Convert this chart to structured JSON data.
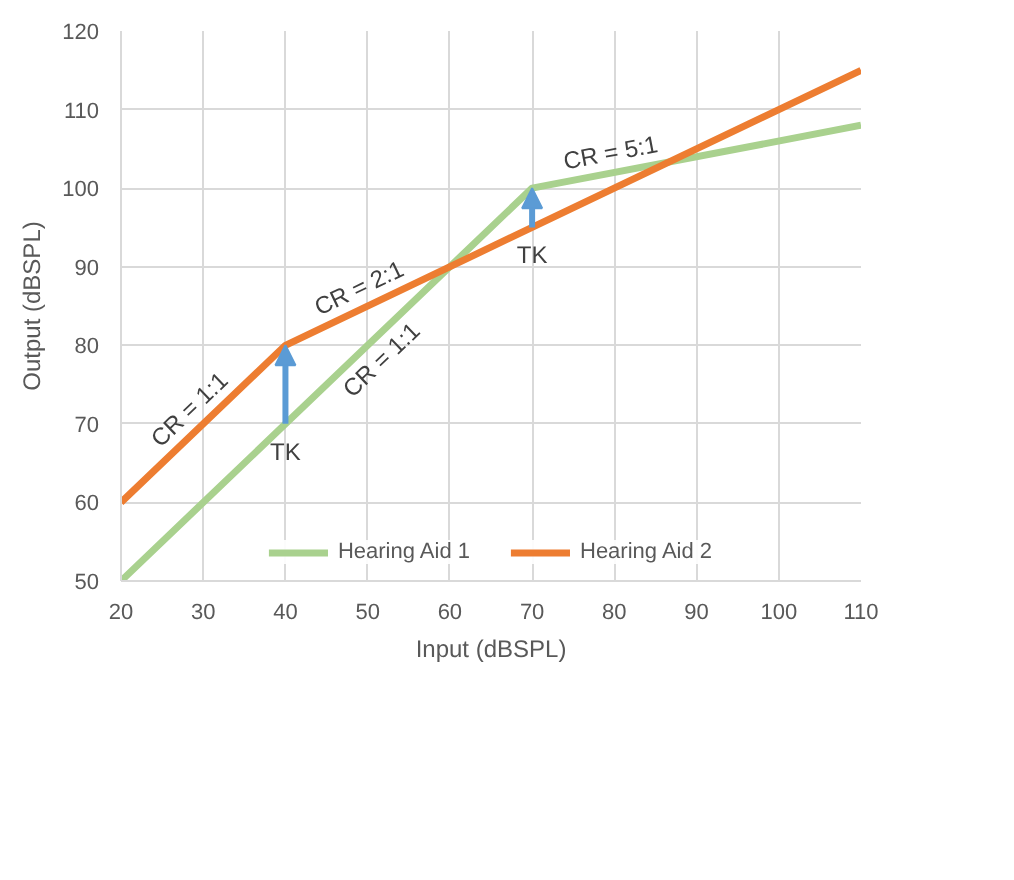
{
  "chart_data": {
    "type": "line",
    "xlabel": "Input (dBSPL)",
    "ylabel": "Output (dBSPL)",
    "xlim": [
      20,
      110
    ],
    "ylim": [
      50,
      120
    ],
    "xticks": [
      20,
      30,
      40,
      50,
      60,
      70,
      80,
      90,
      100,
      110
    ],
    "yticks": [
      50,
      60,
      70,
      80,
      90,
      100,
      110,
      120
    ],
    "grid": true,
    "legend": "bottom",
    "line_style": "solid",
    "series": [
      {
        "name": "Hearing Aid 1",
        "color": "#a9d18e",
        "x": [
          20,
          70,
          110
        ],
        "values": [
          50,
          100,
          108
        ]
      },
      {
        "name": "Hearing Aid 2",
        "color": "#ed7d31",
        "x": [
          20,
          40,
          110
        ],
        "values": [
          60,
          80,
          115
        ]
      }
    ],
    "annotations": [
      {
        "text": "CR = 1:1",
        "x": 30,
        "y": 70
      },
      {
        "text": "CR = 2:1",
        "x": 50,
        "y": 85
      },
      {
        "text": "CR = 5:1",
        "x": 80,
        "y": 102
      },
      {
        "text": "CR = 1:1",
        "x": 50,
        "y": 80
      },
      {
        "text": "TK",
        "x": 40,
        "y": 70
      },
      {
        "text": "TK",
        "x": 70,
        "y": 95
      }
    ]
  }
}
